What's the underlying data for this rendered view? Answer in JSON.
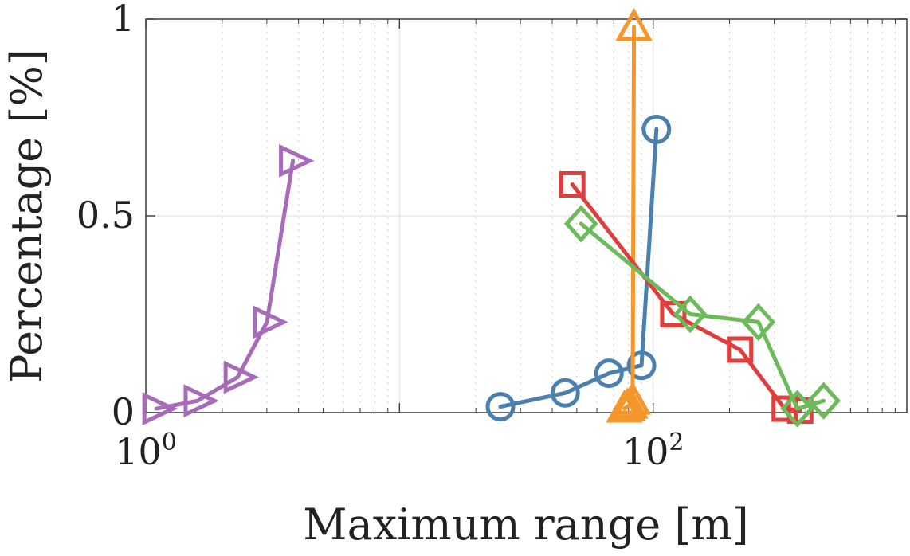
{
  "chart_data": {
    "type": "line",
    "title": "",
    "xlabel": "Maximum range [m]",
    "ylabel": "Percentage [%]",
    "xscale": "log",
    "xlim": [
      1,
      1000
    ],
    "ylim": [
      0,
      1
    ],
    "grid": true,
    "x_ticks": [
      {
        "value": 1,
        "base": "10",
        "exp": "0"
      },
      {
        "value": 100,
        "base": "10",
        "exp": "2"
      }
    ],
    "y_ticks": [
      {
        "value": 0,
        "label": "0"
      },
      {
        "value": 0.5,
        "label": "0.5"
      },
      {
        "value": 1,
        "label": "1"
      }
    ],
    "series": [
      {
        "color": "#a76bb9",
        "marker": "triangle-right",
        "x": [
          1.1,
          1.6,
          2.3,
          3.0,
          3.8
        ],
        "y": [
          0.01,
          0.03,
          0.09,
          0.23,
          0.64
        ]
      },
      {
        "color": "#4a7fae",
        "marker": "circle",
        "x": [
          25,
          45,
          67,
          90,
          103
        ],
        "y": [
          0.015,
          0.05,
          0.1,
          0.12,
          0.72
        ]
      },
      {
        "color": "#f5962a",
        "marker": "triangle-up",
        "x": [
          77,
          79,
          81,
          83,
          84
        ],
        "y": [
          0.01,
          0.015,
          0.02,
          0.03,
          0.98
        ]
      },
      {
        "color": "#df3e3c",
        "marker": "square",
        "x": [
          48,
          120,
          220,
          330,
          380
        ],
        "y": [
          0.58,
          0.25,
          0.16,
          0.01,
          0.005
        ]
      },
      {
        "color": "#6cba5a",
        "marker": "diamond",
        "x": [
          52,
          140,
          260,
          370,
          470
        ],
        "y": [
          0.48,
          0.25,
          0.23,
          0.01,
          0.03
        ]
      }
    ]
  }
}
